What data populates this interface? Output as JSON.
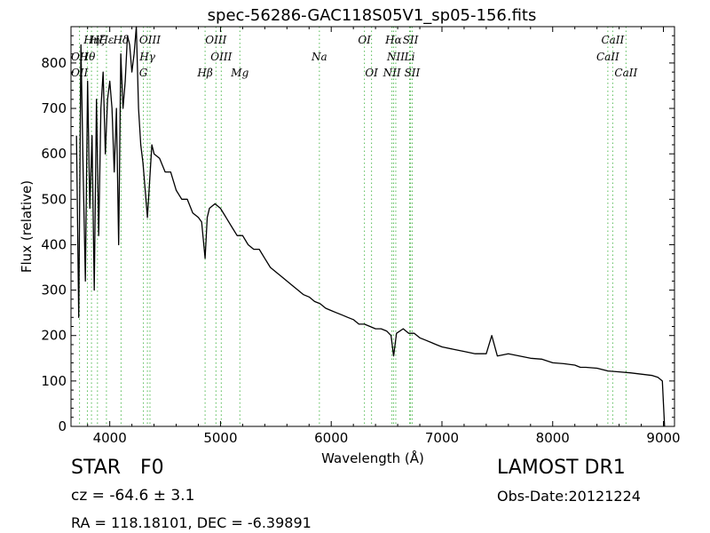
{
  "chart_data": {
    "type": "line",
    "title": "spec-56286-GAC118S05V1_sp05-156.fits",
    "xlabel": "Wavelength (Å)",
    "ylabel": "Flux (relative)",
    "xlim": [
      3650,
      9100
    ],
    "ylim": [
      0,
      880
    ],
    "xticks": [
      4000,
      5000,
      6000,
      7000,
      8000,
      9000
    ],
    "yticks": [
      0,
      100,
      200,
      300,
      400,
      500,
      600,
      700,
      800
    ],
    "grid": false,
    "line_color": "#000000",
    "marker_color": "#55bb55",
    "series": [
      {
        "x": [
          3700,
          3720,
          3740,
          3760,
          3780,
          3800,
          3820,
          3840,
          3860,
          3880,
          3900,
          3920,
          3940,
          3960,
          3980,
          4000,
          4020,
          4040,
          4060,
          4080,
          4100,
          4120,
          4140,
          4160,
          4180,
          4200,
          4220,
          4240,
          4260,
          4280,
          4300,
          4320,
          4340,
          4360,
          4380,
          4400,
          4450,
          4500,
          4550,
          4600,
          4650,
          4700,
          4750,
          4800,
          4830,
          4861,
          4880,
          4900,
          4950,
          5000,
          5050,
          5100,
          5150,
          5200,
          5250,
          5300,
          5350,
          5400,
          5450,
          5500,
          5550,
          5600,
          5650,
          5700,
          5750,
          5800,
          5850,
          5900,
          5950,
          6000,
          6050,
          6100,
          6150,
          6200,
          6250,
          6300,
          6350,
          6400,
          6450,
          6500,
          6540,
          6563,
          6590,
          6650,
          6700,
          6750,
          6800,
          6850,
          6900,
          6950,
          7000,
          7100,
          7200,
          7300,
          7400,
          7450,
          7500,
          7600,
          7700,
          7800,
          7900,
          8000,
          8100,
          8200,
          8250,
          8300,
          8400,
          8500,
          8600,
          8700,
          8800,
          8900,
          8950,
          8990,
          9010
        ],
        "values": [
          640,
          240,
          840,
          560,
          320,
          760,
          480,
          640,
          300,
          720,
          420,
          700,
          780,
          600,
          720,
          760,
          700,
          560,
          700,
          400,
          820,
          700,
          760,
          860,
          840,
          780,
          820,
          880,
          700,
          620,
          580,
          520,
          460,
          540,
          620,
          600,
          590,
          560,
          560,
          520,
          500,
          500,
          470,
          460,
          450,
          370,
          460,
          480,
          490,
          480,
          460,
          440,
          420,
          420,
          400,
          390,
          390,
          370,
          350,
          340,
          330,
          320,
          310,
          300,
          290,
          285,
          275,
          270,
          260,
          255,
          250,
          245,
          240,
          235,
          225,
          225,
          220,
          215,
          215,
          210,
          200,
          155,
          205,
          215,
          205,
          205,
          195,
          190,
          185,
          180,
          175,
          170,
          165,
          160,
          160,
          200,
          155,
          160,
          155,
          150,
          148,
          140,
          138,
          135,
          130,
          130,
          128,
          122,
          120,
          118,
          115,
          112,
          108,
          100,
          0
        ]
      }
    ],
    "spectral_lines": [
      {
        "label": "Hη",
        "x": 3835,
        "row": 1
      },
      {
        "label": "Hζ",
        "x": 3889,
        "row": 1
      },
      {
        "label": "Hε",
        "x": 3970,
        "row": 1
      },
      {
        "label": "Hδ",
        "x": 4102,
        "row": 1
      },
      {
        "label": "OII",
        "x": 3727,
        "row": 2
      },
      {
        "label": "Hθ",
        "x": 3798,
        "row": 2
      },
      {
        "label": "OII",
        "x": 3727,
        "row": 3
      },
      {
        "label": "Hγ",
        "x": 4340,
        "row": 2
      },
      {
        "label": "G",
        "x": 4304,
        "row": 3
      },
      {
        "label": "OIII",
        "x": 4363,
        "row": 1
      },
      {
        "label": "OIII",
        "x": 4959,
        "row": 1
      },
      {
        "label": "OIII",
        "x": 5007,
        "row": 2
      },
      {
        "label": "Hβ",
        "x": 4861,
        "row": 3
      },
      {
        "label": "Mg",
        "x": 5175,
        "row": 3
      },
      {
        "label": "Na",
        "x": 5893,
        "row": 2
      },
      {
        "label": "OI",
        "x": 6300,
        "row": 1
      },
      {
        "label": "OI",
        "x": 6364,
        "row": 3
      },
      {
        "label": "Hα",
        "x": 6563,
        "row": 1
      },
      {
        "label": "SII",
        "x": 6716,
        "row": 1
      },
      {
        "label": "NII",
        "x": 6583,
        "row": 2
      },
      {
        "label": "Li",
        "x": 6708,
        "row": 2
      },
      {
        "label": "NII",
        "x": 6548,
        "row": 3
      },
      {
        "label": "SII",
        "x": 6731,
        "row": 3
      },
      {
        "label": "CaII",
        "x": 8542,
        "row": 1
      },
      {
        "label": "CaII",
        "x": 8498,
        "row": 2
      },
      {
        "label": "CaII",
        "x": 8662,
        "row": 3
      }
    ]
  },
  "footer": {
    "object_type": "STAR",
    "subclass": "F0",
    "survey": "LAMOST DR1",
    "cz": "cz = -64.6 ± 3.1",
    "obs_date": "Obs-Date:20121224",
    "coords": "RA = 118.18101, DEC = -6.39891"
  }
}
